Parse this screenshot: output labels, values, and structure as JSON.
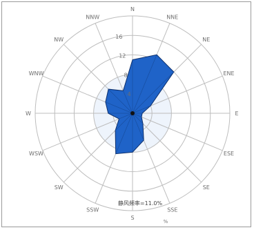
{
  "chart_data": {
    "type": "windrose",
    "directions": [
      "N",
      "NNE",
      "NE",
      "ENE",
      "E",
      "ESE",
      "SE",
      "SSE",
      "S",
      "SSW",
      "SW",
      "WSW",
      "W",
      "WNW",
      "NW",
      "NNW"
    ],
    "values": [
      11,
      13,
      12,
      4,
      2,
      2,
      3,
      6,
      8,
      9,
      5,
      3,
      5,
      6,
      7,
      5
    ],
    "rticks": [
      4,
      8,
      12,
      16
    ],
    "rmax": 20,
    "caption": "静风频率=11.0%",
    "fill_color": "#1f63c8",
    "edge_color": "#0d2f6b",
    "grid_color": "#bdbdbd",
    "bottom_text": "%"
  }
}
